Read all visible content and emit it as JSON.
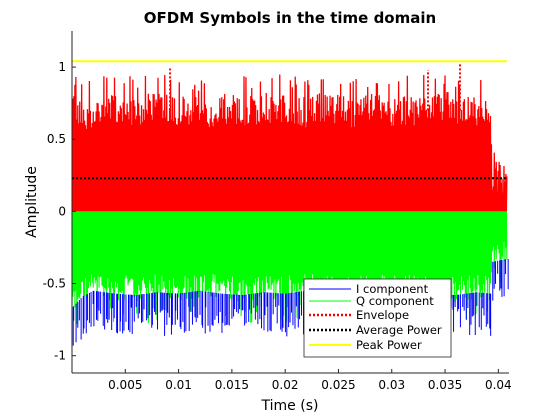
{
  "chart_data": {
    "type": "line",
    "title": "OFDM Symbols in the time domain",
    "xlabel": "Time (s)",
    "ylabel": "Amplitude",
    "xlim": [
      0,
      0.041
    ],
    "ylim": [
      -1.12,
      1.25
    ],
    "x_ticks": [
      0.005,
      0.01,
      0.015,
      0.02,
      0.025,
      0.03,
      0.035,
      0.04
    ],
    "x_tick_labels": [
      "0.005",
      "0.01",
      "0.015",
      "0.02",
      "0.025",
      "0.03",
      "0.035",
      "0.04"
    ],
    "y_ticks": [
      -1,
      -0.5,
      0,
      0.5,
      1
    ],
    "y_tick_labels": [
      "-1",
      "-0.5",
      "0",
      "0.5",
      "1"
    ],
    "grid": false,
    "legend_position": "bottom-right",
    "series": [
      {
        "name": "I component",
        "color": "#0000ff",
        "style": "solid",
        "description_range": [
          -0.98,
          0.45
        ]
      },
      {
        "name": "Q component",
        "color": "#00ff00",
        "style": "solid",
        "x_end": 0.0408,
        "band_upper": 0.0,
        "band_lower_samples": [
          [
            0.0,
            -0.72
          ],
          [
            0.001,
            -0.64
          ],
          [
            0.002,
            -0.6
          ],
          [
            0.004,
            -0.62
          ],
          [
            0.006,
            -0.63
          ],
          [
            0.008,
            -0.61
          ],
          [
            0.01,
            -0.62
          ],
          [
            0.012,
            -0.6
          ],
          [
            0.014,
            -0.62
          ],
          [
            0.016,
            -0.63
          ],
          [
            0.018,
            -0.61
          ],
          [
            0.02,
            -0.62
          ],
          [
            0.022,
            -0.6
          ],
          [
            0.024,
            -0.62
          ],
          [
            0.026,
            -0.63
          ],
          [
            0.028,
            -0.61
          ],
          [
            0.03,
            -0.62
          ],
          [
            0.032,
            -0.6
          ],
          [
            0.034,
            -0.62
          ],
          [
            0.036,
            -0.63
          ],
          [
            0.038,
            -0.61
          ],
          [
            0.0393,
            -0.62
          ],
          [
            0.0394,
            -0.4
          ],
          [
            0.0408,
            -0.38
          ]
        ]
      },
      {
        "name": "Envelope",
        "color": "#ff0000",
        "style": "dotted",
        "x_end": 0.0408,
        "band_lower": 0.0,
        "band_upper_samples": [
          [
            0.0,
            0.84
          ],
          [
            0.001,
            0.78
          ],
          [
            0.002,
            0.8
          ],
          [
            0.004,
            0.82
          ],
          [
            0.006,
            0.8
          ],
          [
            0.008,
            0.86
          ],
          [
            0.01,
            0.81
          ],
          [
            0.012,
            0.79
          ],
          [
            0.014,
            0.82
          ],
          [
            0.016,
            0.8
          ],
          [
            0.018,
            0.83
          ],
          [
            0.02,
            0.81
          ],
          [
            0.022,
            0.8
          ],
          [
            0.024,
            0.84
          ],
          [
            0.026,
            0.8
          ],
          [
            0.028,
            0.82
          ],
          [
            0.03,
            0.81
          ],
          [
            0.032,
            0.8
          ],
          [
            0.034,
            0.84
          ],
          [
            0.036,
            0.82
          ],
          [
            0.038,
            0.8
          ],
          [
            0.0393,
            0.82
          ],
          [
            0.0394,
            0.35
          ],
          [
            0.0408,
            0.35
          ]
        ],
        "peaks": [
          [
            0.0092,
            0.99
          ],
          [
            0.0334,
            0.98
          ],
          [
            0.0364,
            1.03
          ]
        ]
      },
      {
        "name": "Average Power",
        "color": "#000000",
        "style": "dotted",
        "x": [
          0,
          0.0408
        ],
        "y": [
          0.23,
          0.23
        ]
      },
      {
        "name": "Peak Power",
        "color": "#ffff00",
        "style": "solid",
        "x": [
          0,
          0.0408
        ],
        "y": [
          1.04,
          1.04
        ]
      }
    ]
  }
}
